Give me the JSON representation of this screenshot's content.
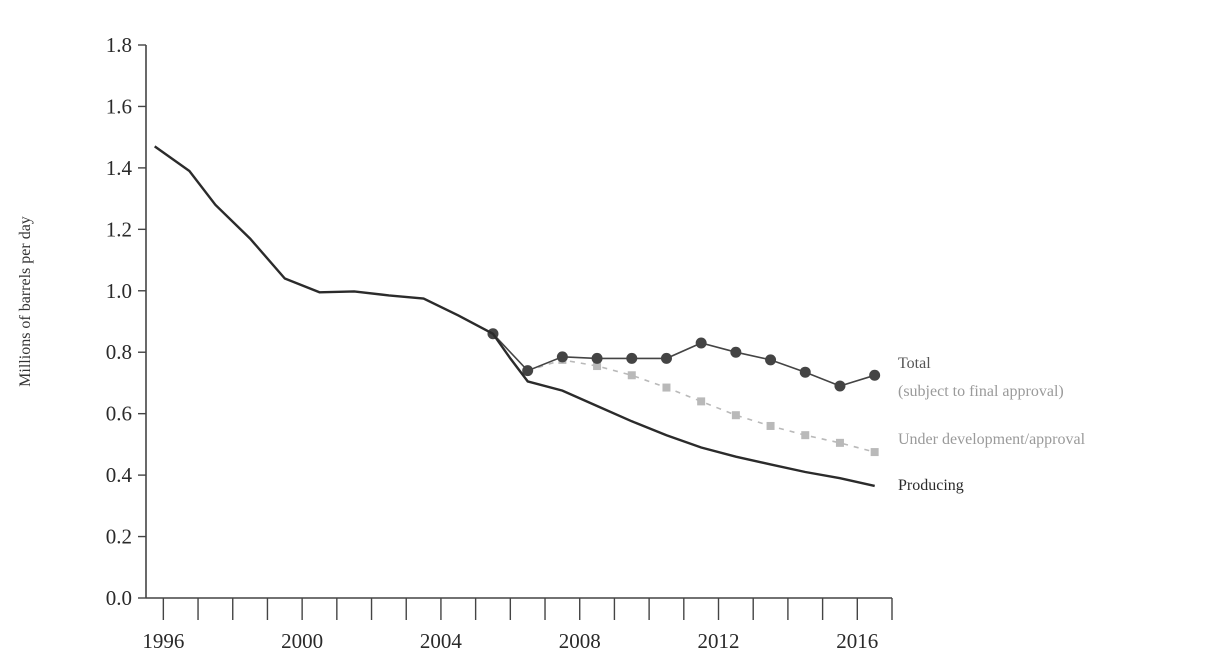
{
  "chart_data": {
    "type": "line",
    "title": "",
    "xlabel": "",
    "ylabel": "Millions of barrels per day",
    "xlim": [
      1995.5,
      2017
    ],
    "ylim": [
      0.0,
      1.8
    ],
    "x_tick_labels": [
      "1996",
      "2000",
      "2004",
      "2008",
      "2012",
      "2016"
    ],
    "x_tick_values": [
      1996,
      2000,
      2004,
      2008,
      2012,
      2016
    ],
    "x_minor_ticks": [
      1996,
      1997,
      1998,
      1999,
      2000,
      2001,
      2002,
      2003,
      2004,
      2005,
      2006,
      2007,
      2008,
      2009,
      2010,
      2011,
      2012,
      2013,
      2014,
      2015,
      2016,
      2017
    ],
    "y_tick_labels": [
      "0.0",
      "0.2",
      "0.4",
      "0.6",
      "0.8",
      "1.0",
      "1.2",
      "1.4",
      "1.6",
      "1.8"
    ],
    "y_tick_values": [
      0.0,
      0.2,
      0.4,
      0.6,
      0.8,
      1.0,
      1.2,
      1.4,
      1.6,
      1.8
    ],
    "grid": false,
    "series": [
      {
        "name": "Producing",
        "color": "#2b2b2b",
        "marker": "none",
        "style": "solid",
        "x": [
          1995.75,
          1996.75,
          1997.5,
          1998.5,
          1999.5,
          2000.5,
          2001.5,
          2002.5,
          2003.5,
          2004.5,
          2005.5,
          2006.0,
          2006.5,
          2007.5,
          2008.5,
          2009.5,
          2010.5,
          2011.5,
          2012.5,
          2013.5,
          2014.5,
          2015.5,
          2016.5
        ],
        "values": [
          1.47,
          1.39,
          1.28,
          1.17,
          1.04,
          0.995,
          0.998,
          0.985,
          0.975,
          0.92,
          0.86,
          0.78,
          0.705,
          0.675,
          0.625,
          0.575,
          0.53,
          0.49,
          0.46,
          0.435,
          0.41,
          0.39,
          0.365
        ]
      },
      {
        "name": "Total (subject to final approval)",
        "color": "#444444",
        "marker": "circle",
        "style": "solid",
        "x": [
          2005.5,
          2006.5,
          2007.5,
          2008.5,
          2009.5,
          2010.5,
          2011.5,
          2012.5,
          2013.5,
          2014.5,
          2015.5,
          2016.5
        ],
        "values": [
          0.86,
          0.74,
          0.785,
          0.78,
          0.78,
          0.78,
          0.83,
          0.8,
          0.775,
          0.735,
          0.69,
          0.725
        ]
      },
      {
        "name": "Under development/approval",
        "color": "#b9b9b9",
        "marker": "square",
        "style": "dashed",
        "x": [
          2006.5,
          2007.5,
          2008.5,
          2009.5,
          2010.5,
          2011.5,
          2012.5,
          2013.5,
          2014.5,
          2015.5,
          2016.5
        ],
        "values": [
          0.74,
          0.775,
          0.755,
          0.725,
          0.685,
          0.64,
          0.595,
          0.56,
          0.53,
          0.505,
          0.475
        ]
      }
    ],
    "legend": "inline labels at line ends"
  }
}
